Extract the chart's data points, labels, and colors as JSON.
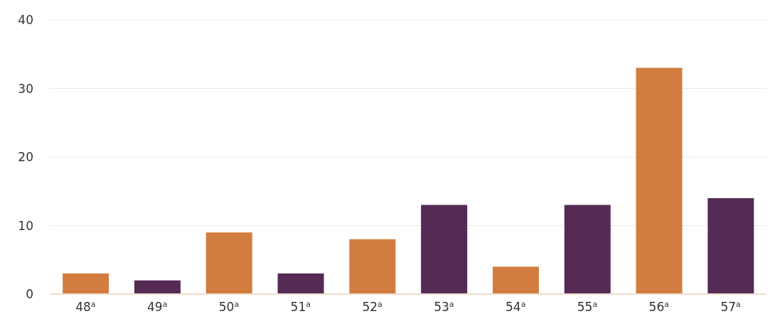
{
  "chart_data": {
    "type": "bar",
    "categories": [
      "48$^{a}$",
      "49$^{a}$",
      "50$^{a}$",
      "51$^{a}$",
      "52$^{a}$",
      "53$^{a}$",
      "54$^{a}$",
      "55$^{a}$",
      "56$^{a}$",
      "57$^{a}$"
    ],
    "values": [
      3,
      2,
      9,
      3,
      8,
      13,
      4,
      13,
      33,
      14
    ],
    "colors": [
      "#d27d3f",
      "#552b55",
      "#d27d3f",
      "#552b55",
      "#d27d3f",
      "#552b55",
      "#d27d3f",
      "#552b55",
      "#d27d3f",
      "#552b55"
    ],
    "ylim": [
      0,
      40
    ],
    "yticks": [
      0,
      10,
      20,
      30,
      40
    ],
    "grid": "y"
  }
}
